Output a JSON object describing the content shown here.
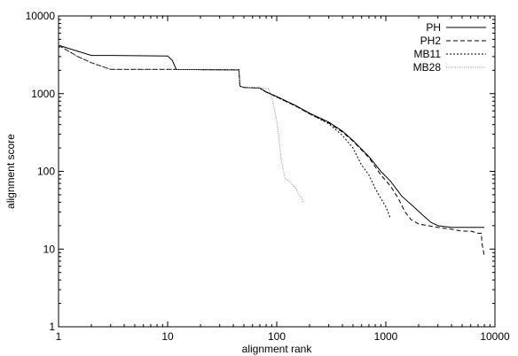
{
  "chart_data": {
    "type": "line",
    "title": "",
    "xlabel": "alignment rank",
    "ylabel": "alignment score",
    "x_scale": "log",
    "y_scale": "log",
    "xlim": [
      1,
      10000
    ],
    "ylim": [
      1,
      10000
    ],
    "grid": false,
    "legend_position": "top-right",
    "x_ticks": [
      1,
      10,
      100,
      1000,
      10000
    ],
    "x_tick_labels": [
      "1",
      "10",
      "100",
      "1000",
      "10000"
    ],
    "y_ticks": [
      1,
      10,
      100,
      1000,
      10000
    ],
    "y_tick_labels": [
      "1",
      "10",
      "100",
      "1000",
      "10000"
    ],
    "series": [
      {
        "name": "PH",
        "dash": "none",
        "color": "#000000",
        "points": [
          [
            1,
            4200
          ],
          [
            2,
            3100
          ],
          [
            3,
            3100
          ],
          [
            10,
            3050
          ],
          [
            11,
            2700
          ],
          [
            12,
            2050
          ],
          [
            45,
            2020
          ],
          [
            46,
            1250
          ],
          [
            50,
            1200
          ],
          [
            70,
            1180
          ],
          [
            80,
            1050
          ],
          [
            100,
            920
          ],
          [
            150,
            700
          ],
          [
            200,
            560
          ],
          [
            300,
            430
          ],
          [
            400,
            330
          ],
          [
            500,
            250
          ],
          [
            700,
            155
          ],
          [
            900,
            100
          ],
          [
            1100,
            75
          ],
          [
            1400,
            48
          ],
          [
            1800,
            35
          ],
          [
            2200,
            27
          ],
          [
            2600,
            22
          ],
          [
            3000,
            20
          ],
          [
            4000,
            19
          ],
          [
            6000,
            19
          ],
          [
            8000,
            19
          ]
        ]
      },
      {
        "name": "PH2",
        "dash": "5,3",
        "color": "#000000",
        "points": [
          [
            1,
            4200
          ],
          [
            1.5,
            3000
          ],
          [
            2,
            2500
          ],
          [
            3,
            2050
          ],
          [
            10,
            2050
          ],
          [
            45,
            2030
          ],
          [
            46,
            1250
          ],
          [
            50,
            1200
          ],
          [
            70,
            1180
          ],
          [
            80,
            1050
          ],
          [
            100,
            910
          ],
          [
            150,
            690
          ],
          [
            200,
            550
          ],
          [
            300,
            420
          ],
          [
            400,
            320
          ],
          [
            500,
            245
          ],
          [
            700,
            150
          ],
          [
            900,
            90
          ],
          [
            1100,
            65
          ],
          [
            1300,
            45
          ],
          [
            1500,
            30
          ],
          [
            1700,
            24
          ],
          [
            2000,
            21
          ],
          [
            3000,
            19
          ],
          [
            4000,
            18
          ],
          [
            5000,
            17
          ],
          [
            6000,
            17
          ],
          [
            7000,
            16
          ],
          [
            7500,
            16
          ],
          [
            7600,
            12
          ],
          [
            8000,
            8
          ]
        ]
      },
      {
        "name": "MB11",
        "dash": "2,2",
        "color": "#000000",
        "points": [
          [
            1,
            4200
          ],
          [
            1.5,
            3000
          ],
          [
            2,
            2500
          ],
          [
            3,
            2050
          ],
          [
            10,
            2050
          ],
          [
            45,
            2030
          ],
          [
            46,
            1250
          ],
          [
            50,
            1200
          ],
          [
            70,
            1180
          ],
          [
            80,
            1050
          ],
          [
            100,
            900
          ],
          [
            150,
            690
          ],
          [
            200,
            550
          ],
          [
            300,
            410
          ],
          [
            400,
            290
          ],
          [
            500,
            200
          ],
          [
            600,
            120
          ],
          [
            700,
            90
          ],
          [
            800,
            60
          ],
          [
            900,
            45
          ],
          [
            1000,
            35
          ],
          [
            1100,
            25
          ]
        ]
      },
      {
        "name": "MB28",
        "dash": "1,1.5",
        "color": "#888888",
        "points": [
          [
            1,
            4200
          ],
          [
            1.5,
            3000
          ],
          [
            2,
            2500
          ],
          [
            3,
            2050
          ],
          [
            10,
            2050
          ],
          [
            45,
            2030
          ],
          [
            46,
            1250
          ],
          [
            50,
            1200
          ],
          [
            70,
            1180
          ],
          [
            85,
            1150
          ],
          [
            90,
            900
          ],
          [
            95,
            650
          ],
          [
            100,
            450
          ],
          [
            105,
            260
          ],
          [
            110,
            140
          ],
          [
            115,
            100
          ],
          [
            120,
            80
          ],
          [
            130,
            75
          ],
          [
            150,
            60
          ],
          [
            160,
            50
          ],
          [
            170,
            45
          ],
          [
            175,
            40
          ]
        ]
      }
    ]
  }
}
